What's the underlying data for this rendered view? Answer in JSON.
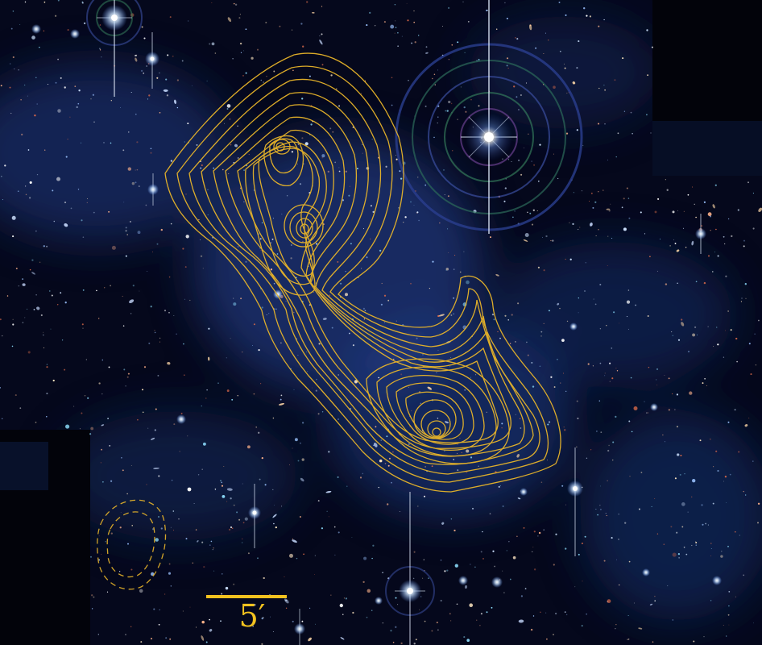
{
  "scale_bar": {
    "label": "5′"
  },
  "colors": {
    "contour": "#e8b52a",
    "sky_dark": "#05081c",
    "sky_haze": "#1d3d86",
    "scale": "#f3c21f"
  },
  "icons": {
    "bright_star": "bright-star-icon",
    "galaxy": "galaxy-icon"
  }
}
